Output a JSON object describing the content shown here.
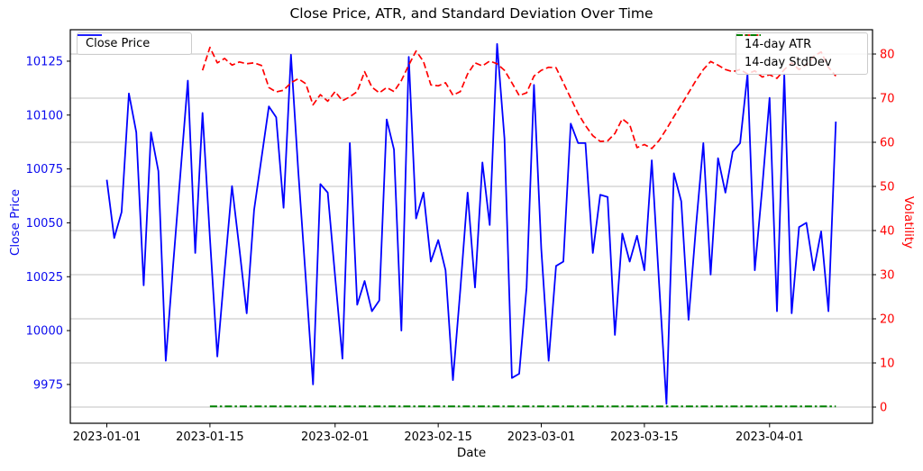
{
  "chart_data": {
    "type": "line",
    "title": "Close Price, ATR, and Standard Deviation Over Time",
    "xlabel": "Date",
    "ylabel_left": "Close Price",
    "ylabel_right": "Volatility",
    "grid": true,
    "legend_positions": [
      "upper left",
      "upper right"
    ],
    "x_start_date": "2023-01-01",
    "x_end_date": "2023-04-10",
    "x_tick_labels": [
      "2023-01-01",
      "2023-01-15",
      "2023-02-01",
      "2023-02-15",
      "2023-03-01",
      "2023-03-15",
      "2023-04-01"
    ],
    "x_tick_days": [
      0,
      14,
      31,
      45,
      59,
      73,
      90
    ],
    "x_range_days": [
      -4.96,
      103.98
    ],
    "y_left_ticks": [
      9975,
      10000,
      10025,
      10050,
      10075,
      10100,
      10125
    ],
    "y_left_range": [
      9957.0,
      10139.6
    ],
    "y_right_ticks": [
      0,
      10,
      20,
      30,
      40,
      50,
      60,
      70,
      80
    ],
    "y_right_range": [
      -3.67,
      85.51
    ],
    "colors": {
      "close": "#0000ff",
      "atr": "#ff0000",
      "stddev": "#008000",
      "grid": "#c2c2c2",
      "tick_label_left": "#0b0bee",
      "tick_label_right": "#ff0000"
    },
    "series": [
      {
        "name": "Close Price",
        "axis": "left",
        "style": "solid",
        "color": "#0000ff",
        "start_day": 0,
        "values": [
          10070,
          10043,
          10055,
          10110,
          10092,
          10021,
          10092,
          10074,
          9986,
          10030,
          10073,
          10116,
          10036,
          10101,
          10043,
          9988,
          10028,
          10067,
          10038,
          10008,
          10056,
          10080,
          10104,
          10099,
          10057,
          10128,
          10074,
          10025,
          9975,
          10068,
          10064,
          10025,
          9987,
          10087,
          10012,
          10023,
          10009,
          10014,
          10098,
          10084,
          10000,
          10127,
          10052,
          10064,
          10032,
          10042,
          10028,
          9977,
          10019,
          10064,
          10020,
          10078,
          10049,
          10133,
          10089,
          9978,
          9980,
          10020,
          10114,
          10038,
          9986,
          10030,
          10032,
          10096,
          10087,
          10087,
          10036,
          10063,
          10062,
          9998,
          10045,
          10032,
          10044,
          10028,
          10079,
          10022,
          9966,
          10073,
          10060,
          10005,
          10048,
          10087,
          10026,
          10080,
          10064,
          10083,
          10087,
          10119,
          10028,
          10066,
          10108,
          10009,
          10119,
          10008,
          10048,
          10050,
          10028,
          10046,
          10009,
          10097
        ]
      },
      {
        "name": "14-day ATR",
        "axis": "right",
        "style": "dashed",
        "color": "#ff0000",
        "start_day": 13,
        "values": [
          76.3,
          81.5,
          78.0,
          79.0,
          77.5,
          78.2,
          77.8,
          78.0,
          77.4,
          72.4,
          71.4,
          71.8,
          73.5,
          74.4,
          73.3,
          68.5,
          70.8,
          69.3,
          71.5,
          69.4,
          70.3,
          71.5,
          76.0,
          72.5,
          71.2,
          72.4,
          71.5,
          74.0,
          77.5,
          80.7,
          78.3,
          73.0,
          72.8,
          73.5,
          70.7,
          71.5,
          75.5,
          78.0,
          77.3,
          78.4,
          77.8,
          76.3,
          73.5,
          70.6,
          71.2,
          75.0,
          76.3,
          77.0,
          76.9,
          73.5,
          70.0,
          66.5,
          63.8,
          61.5,
          60.2,
          60.3,
          62.0,
          65.3,
          64.0,
          58.8,
          59.5,
          58.6,
          60.4,
          63.0,
          65.8,
          68.5,
          71.2,
          74.0,
          76.5,
          78.3,
          77.5,
          76.5,
          76.0,
          76.5,
          75.5,
          76.2,
          74.8,
          75.3,
          74.5,
          76.5,
          78.0,
          76.5,
          77.5,
          79.5,
          80.5,
          77.0,
          75.0
        ]
      },
      {
        "name": "14-day StdDev",
        "axis": "right",
        "style": "dashdot",
        "color": "#008000",
        "start_day": 14,
        "end_day": 99,
        "constant_value": 0.15
      }
    ]
  }
}
